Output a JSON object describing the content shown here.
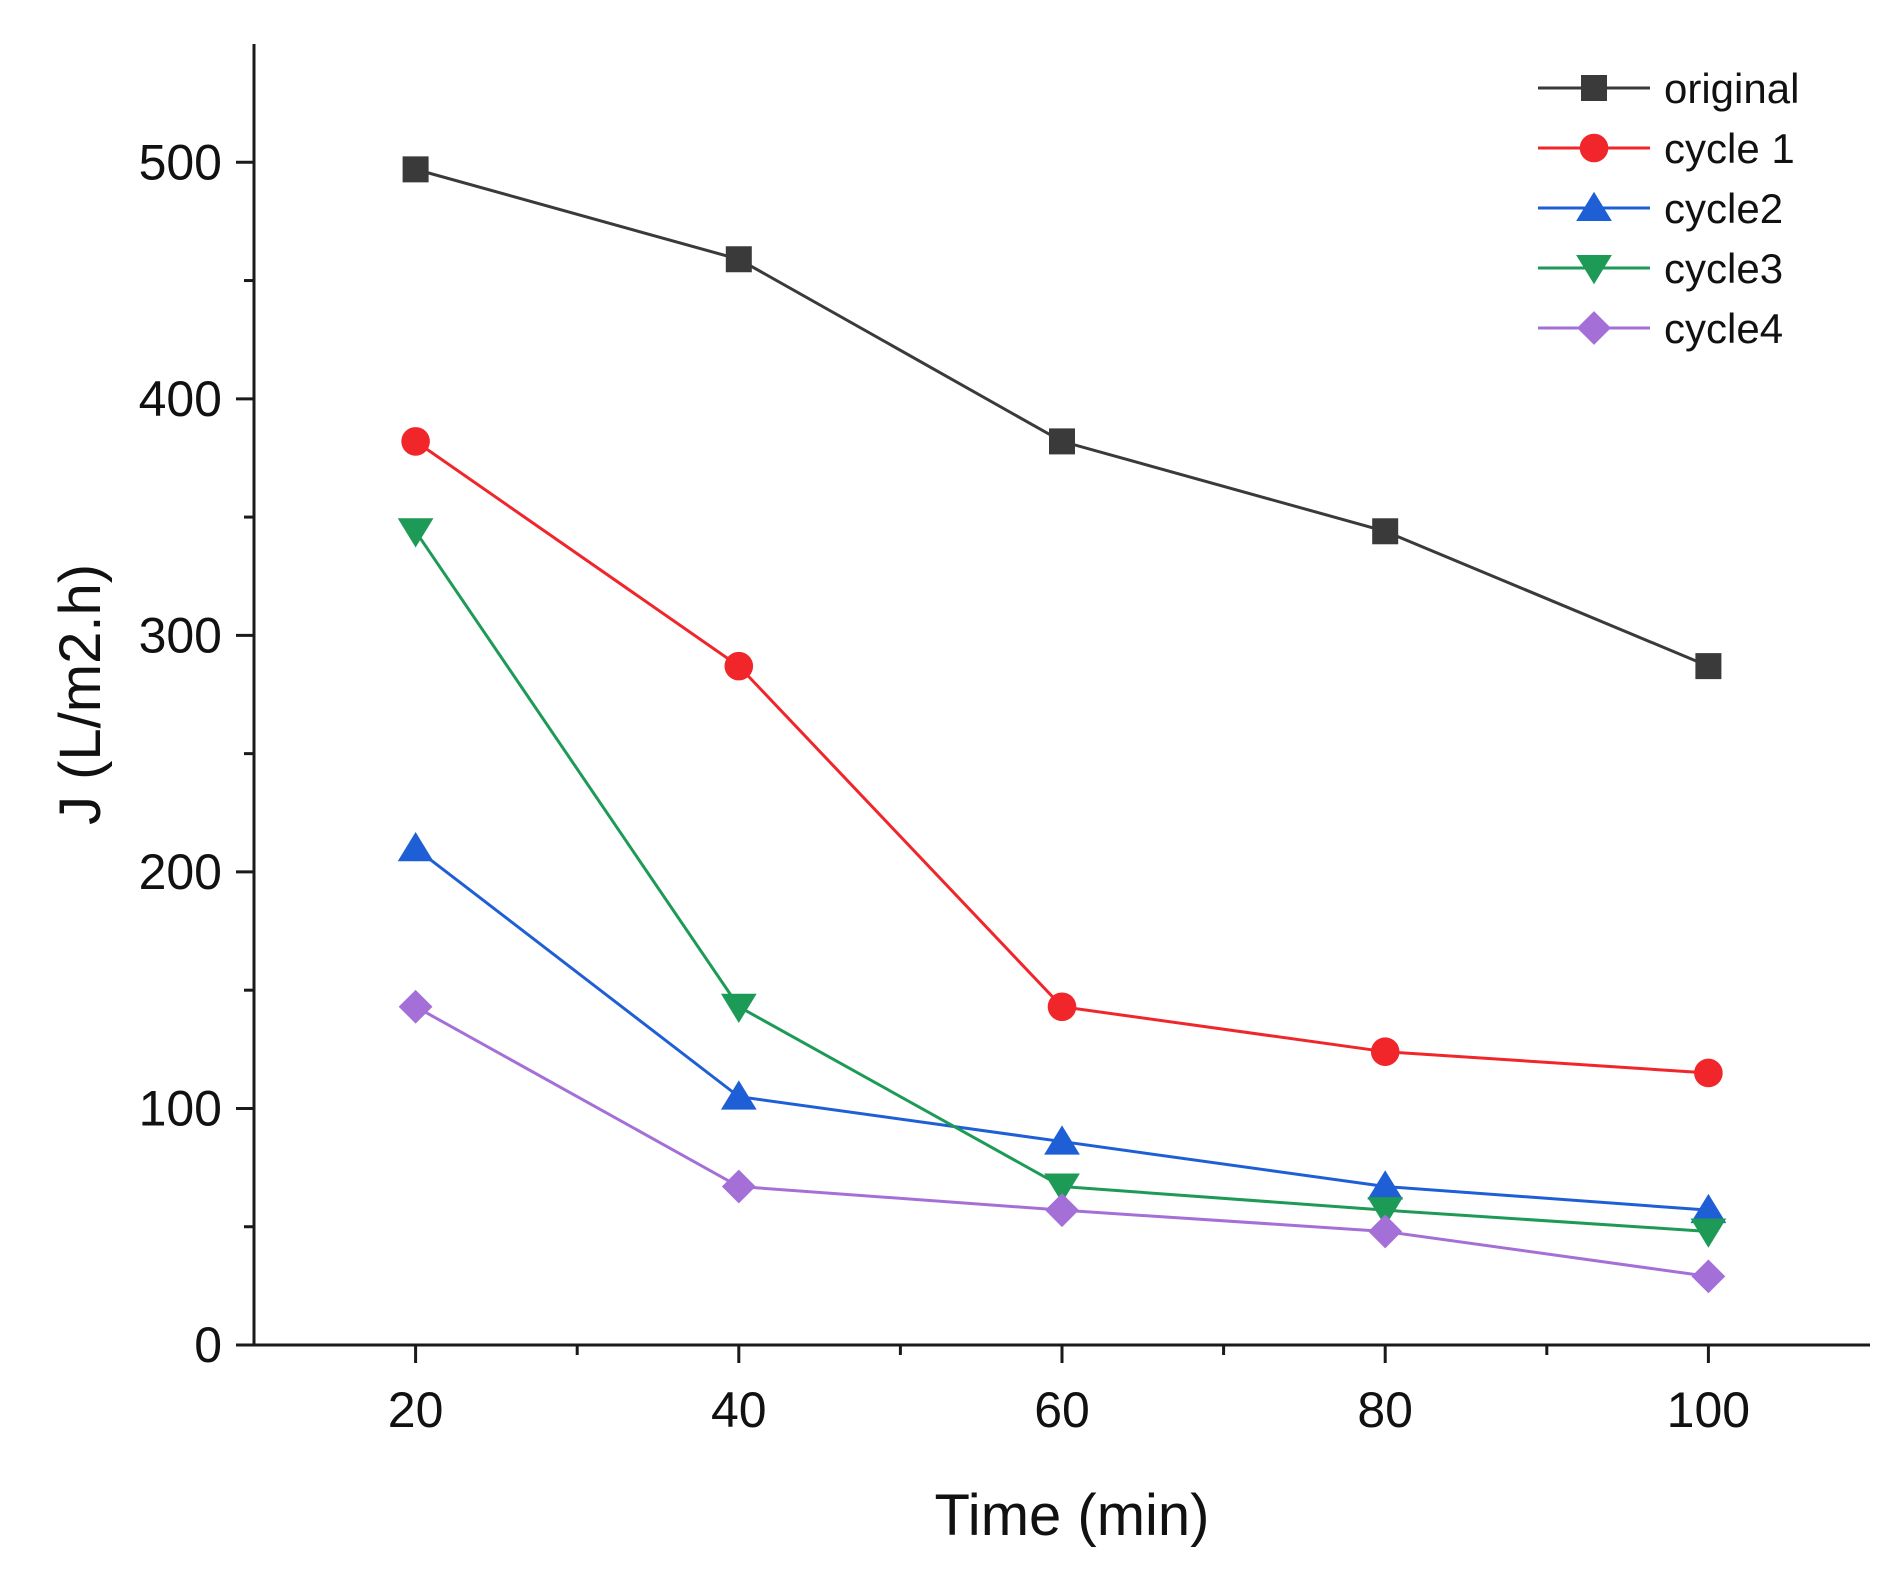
{
  "chart_data": {
    "type": "line",
    "title": "",
    "xlabel": "Time (min)",
    "ylabel": "J (L/m2.h)",
    "x": [
      20,
      40,
      60,
      80,
      100
    ],
    "xlim": [
      10,
      110
    ],
    "ylim": [
      0,
      550
    ],
    "xticks": [
      20,
      40,
      60,
      80,
      100
    ],
    "xminor": [
      30,
      50,
      70,
      90
    ],
    "yticks": [
      0,
      100,
      200,
      300,
      400,
      500
    ],
    "yminor": [
      50,
      150,
      250,
      350,
      450
    ],
    "grid": false,
    "legend_position": "top-right",
    "series": [
      {
        "name": "original",
        "marker": "square",
        "color": "#3a3a3a",
        "values": [
          497,
          459,
          382,
          344,
          287
        ]
      },
      {
        "name": "cycle 1",
        "marker": "circle",
        "color": "#f0262a",
        "values": [
          382,
          287,
          143,
          124,
          115
        ]
      },
      {
        "name": "cycle2",
        "marker": "triangle-up",
        "color": "#1f5fd6",
        "values": [
          210,
          105,
          86,
          67,
          57
        ]
      },
      {
        "name": "cycle3",
        "marker": "triangle-down",
        "color": "#1e9a57",
        "values": [
          344,
          143,
          67,
          57,
          48
        ]
      },
      {
        "name": "cycle4",
        "marker": "diamond",
        "color": "#a56fd8",
        "values": [
          143,
          67,
          57,
          48,
          29
        ]
      }
    ]
  }
}
